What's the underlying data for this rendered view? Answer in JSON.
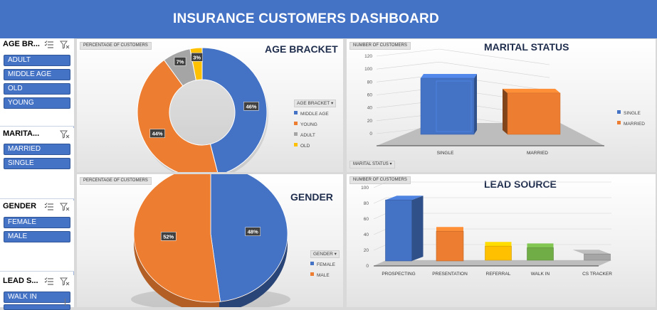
{
  "header": {
    "title": "INSURANCE CUSTOMERS DASHBOARD"
  },
  "colors": {
    "blue": "#4472c4",
    "orange": "#ed7d31",
    "gray": "#a5a5a5",
    "gold": "#ffc000",
    "green": "#70ad47",
    "header": "#4472c4"
  },
  "slicers": [
    {
      "title": "AGE BR...",
      "items": [
        "ADULT",
        "MIDDLE AGE",
        "OLD",
        "YOUNG"
      ]
    },
    {
      "title": "MARITA...",
      "items": [
        "MARRIED",
        "SINGLE"
      ]
    },
    {
      "title": "GENDER",
      "items": [
        "FEMALE",
        "MALE"
      ]
    },
    {
      "title": "LEAD S...",
      "items": [
        "WALK IN"
      ]
    }
  ],
  "icons": {
    "multiselect": "multi-select-icon",
    "clear": "clear-filter-icon",
    "dropdown": "dropdown-arrow-icon"
  },
  "age_chart": {
    "field_button": "PERCENTAGE OF CUSTOMERS",
    "legend_header": "AGE BRACKET",
    "legend": [
      "MIDDLE AGE",
      "YOUNG",
      "ADULT",
      "OLD"
    ]
  },
  "marital_chart": {
    "field_button": "NUMBER OF CUSTOMERS",
    "axis_button": "MARITAL STATUS",
    "legend": [
      "SINGLE",
      "MARRIED"
    ]
  },
  "gender_chart": {
    "field_button": "PERCENTAGE OF CUSTOMERS",
    "legend_header": "GENDER",
    "legend": [
      "FEMALE",
      "MALE"
    ]
  },
  "lead_chart": {
    "field_button": "NUMBER OF CUSTOMERS"
  },
  "chart_data": [
    {
      "type": "pie",
      "title": "AGE BRACKET",
      "categories": [
        "MIDDLE AGE",
        "YOUNG",
        "ADULT",
        "OLD"
      ],
      "values": [
        46,
        44,
        7,
        3
      ],
      "labels": [
        "46%",
        "44%",
        "7%",
        "3%"
      ],
      "donut": true
    },
    {
      "type": "bar",
      "title": "MARITAL STATUS",
      "categories": [
        "SINGLE",
        "MARRIED"
      ],
      "values": [
        87,
        64
      ],
      "ylim": [
        0,
        120
      ],
      "yticks": [
        "0",
        "20",
        "40",
        "60",
        "80",
        "100",
        "120"
      ],
      "grid": true,
      "legend_position": "right"
    },
    {
      "type": "pie",
      "title": "GENDER",
      "categories": [
        "FEMALE",
        "MALE"
      ],
      "values": [
        48,
        52
      ],
      "labels": [
        "48%",
        "52%"
      ]
    },
    {
      "type": "bar",
      "title": "LEAD SOURCE",
      "categories": [
        "PROSPECTING",
        "PRESENTATION",
        "REFERRAL",
        "WALK IN",
        "CS TRACKER"
      ],
      "values": [
        78,
        38,
        18,
        16,
        8
      ],
      "ylim": [
        0,
        100
      ],
      "yticks": [
        "0",
        "20",
        "40",
        "60",
        "80",
        "100"
      ],
      "grid": true
    }
  ]
}
